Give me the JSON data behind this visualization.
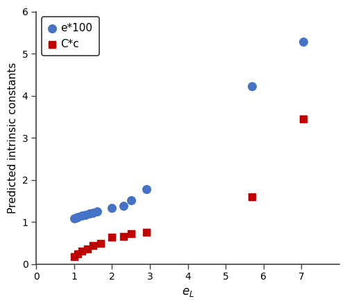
{
  "blue_x": [
    1.0,
    1.05,
    1.1,
    1.2,
    1.3,
    1.4,
    1.5,
    1.6,
    2.0,
    2.3,
    2.5,
    2.9,
    5.7,
    7.05
  ],
  "blue_y": [
    1.08,
    1.1,
    1.12,
    1.15,
    1.17,
    1.2,
    1.22,
    1.25,
    1.33,
    1.38,
    1.52,
    1.78,
    4.22,
    5.28
  ],
  "red_x": [
    1.0,
    1.1,
    1.2,
    1.35,
    1.5,
    1.7,
    2.0,
    2.3,
    2.5,
    2.9,
    5.7,
    7.05
  ],
  "red_y": [
    0.18,
    0.24,
    0.3,
    0.35,
    0.44,
    0.48,
    0.63,
    0.65,
    0.72,
    0.76,
    1.6,
    3.44
  ],
  "xlabel": "$e_L$",
  "ylabel": "Predicted intrinsic constants",
  "legend_blue": "e*100",
  "legend_red": "C*c",
  "xlim": [
    0,
    8
  ],
  "ylim": [
    0,
    6
  ],
  "xticks": [
    0,
    1,
    2,
    3,
    4,
    5,
    6,
    7
  ],
  "yticks": [
    0,
    1,
    2,
    3,
    4,
    5,
    6
  ],
  "blue_color": "#4472C4",
  "red_color": "#C00000",
  "bg_color": "#ffffff",
  "marker_size_blue": 70,
  "marker_size_red": 45,
  "xlabel_fontsize": 12,
  "ylabel_fontsize": 11,
  "tick_fontsize": 10,
  "legend_fontsize": 11
}
